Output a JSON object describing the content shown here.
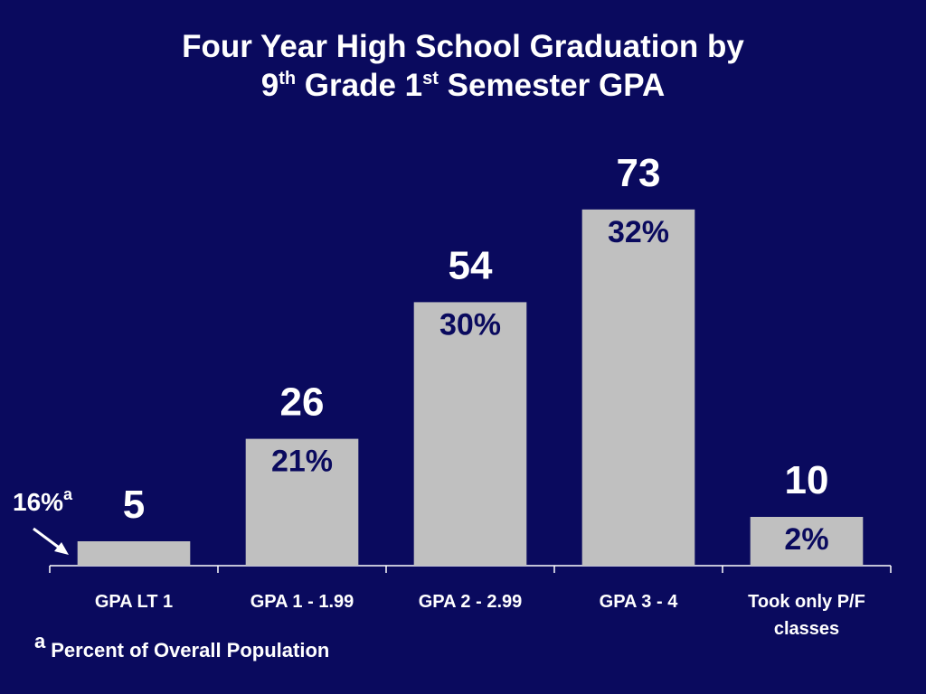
{
  "title": {
    "line1": "Four Year High School Graduation by",
    "l2_a": "9",
    "l2_a_sup": "th",
    "l2_b": " Grade 1",
    "l2_b_sup": "st",
    "l2_c": " Semester GPA"
  },
  "chart_data": {
    "type": "bar",
    "categories": [
      "GPA LT 1",
      "GPA 1 - 1.99",
      "GPA 2 - 2.99",
      "GPA 3 - 4",
      "Took only P/F classes"
    ],
    "values": [
      5,
      26,
      54,
      73,
      10
    ],
    "value_labels": [
      "5",
      "26",
      "54",
      "73",
      "10"
    ],
    "population_share_labels": [
      "",
      "21%",
      "30%",
      "32%",
      "2%"
    ],
    "ylim": [
      0,
      100
    ],
    "grid": false,
    "legend": "none",
    "bar_color": "#c0c0c0",
    "background_color": "#0a0a5e",
    "percent_label_color": "#0a0a5e"
  },
  "annotation": {
    "value": "16%",
    "marker": "a",
    "arrow_icon": "arrow-down-right-icon"
  },
  "footnote": {
    "marker": "a",
    "text": "Percent of Overall Population"
  }
}
